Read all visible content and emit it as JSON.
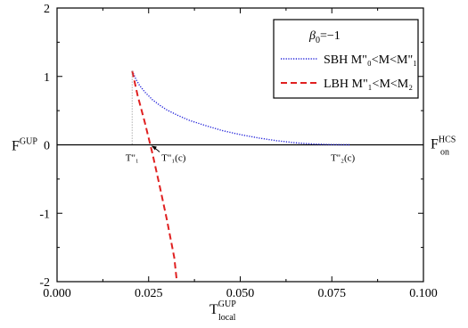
{
  "chart_data": {
    "type": "line",
    "xlabel": {
      "main": "T",
      "sup": "GUP",
      "sub": "local"
    },
    "ylabel": {
      "main": "F",
      "sup": "GUP"
    },
    "right_label": {
      "main": "F",
      "sup": "HCS",
      "sub": "on"
    },
    "xlim": [
      0.0,
      0.1
    ],
    "ylim": [
      -2,
      2
    ],
    "xticks": [
      "0.000",
      "0.025",
      "0.050",
      "0.075",
      "0.100"
    ],
    "yticks": [
      "2",
      "1",
      "0",
      "-1",
      "-2"
    ],
    "legend": {
      "position": "top-right",
      "title": {
        "main": "β",
        "sub": "0",
        "rest": "=−1"
      },
      "entries": [
        {
          "text": "SBH M\"₀<M<M\"₁"
        },
        {
          "text": "LBH M\"₁<M<M₂"
        }
      ]
    },
    "annotations": [
      {
        "text": "T\"₁"
      },
      {
        "text": "T\"₁(c)"
      },
      {
        "text": "T\"₂(c)"
      }
    ],
    "colors": {
      "sbh": "#1f1fd9",
      "lbh": "#e02020",
      "axis": "#000000",
      "guide": "#888888"
    },
    "series": [
      {
        "name": "SBH M\"₀<M<M\"₁",
        "style": "dotted",
        "x": [
          0.0205,
          0.0215,
          0.0225,
          0.024,
          0.026,
          0.028,
          0.03,
          0.033,
          0.036,
          0.04,
          0.045,
          0.05,
          0.055,
          0.06,
          0.065,
          0.07,
          0.075,
          0.08
        ],
        "y": [
          1.08,
          0.96,
          0.87,
          0.77,
          0.66,
          0.58,
          0.51,
          0.43,
          0.36,
          0.29,
          0.21,
          0.15,
          0.1,
          0.06,
          0.03,
          0.012,
          0.002,
          0.0
        ]
      },
      {
        "name": "LBH M\"₁<M<M₂",
        "style": "dashed",
        "x": [
          0.0205,
          0.022,
          0.024,
          0.026,
          0.028,
          0.03,
          0.032,
          0.0327
        ],
        "y": [
          1.08,
          0.72,
          0.32,
          -0.12,
          -0.6,
          -1.1,
          -1.65,
          -2.0
        ]
      }
    ]
  }
}
